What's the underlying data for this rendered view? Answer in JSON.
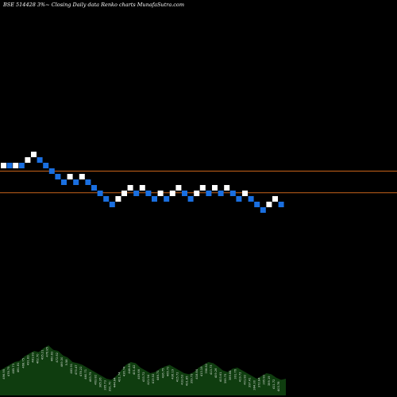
{
  "chart_data": {
    "type": "renko",
    "title": "BSE 514428  3%~  Closing Daily data  Renko  charts MunafaSutra.com",
    "colors": {
      "background": "#000000",
      "up_brick": "#ffffff",
      "down_brick": "#1a6fe0",
      "reference_line": "#c8641a",
      "volume_area": "#0f3d0f",
      "volume_label": "#cfd8cf"
    },
    "reference_lines": [
      {
        "name": "upper-level",
        "level": 0.0
      },
      {
        "name": "lower-level",
        "level": 3.9
      }
    ],
    "bricks": [
      {
        "d": "up",
        "lvl": 0
      },
      {
        "d": "down",
        "lvl": 0
      },
      {
        "d": "up",
        "lvl": 0
      },
      {
        "d": "down",
        "lvl": 0
      },
      {
        "d": "up",
        "lvl": -1
      },
      {
        "d": "up",
        "lvl": -2
      },
      {
        "d": "down",
        "lvl": -1
      },
      {
        "d": "down",
        "lvl": 0
      },
      {
        "d": "down",
        "lvl": 1
      },
      {
        "d": "down",
        "lvl": 2
      },
      {
        "d": "down",
        "lvl": 3
      },
      {
        "d": "up",
        "lvl": 2
      },
      {
        "d": "down",
        "lvl": 3
      },
      {
        "d": "up",
        "lvl": 2
      },
      {
        "d": "down",
        "lvl": 3
      },
      {
        "d": "down",
        "lvl": 4
      },
      {
        "d": "down",
        "lvl": 5
      },
      {
        "d": "down",
        "lvl": 6
      },
      {
        "d": "down",
        "lvl": 7
      },
      {
        "d": "up",
        "lvl": 6
      },
      {
        "d": "up",
        "lvl": 5
      },
      {
        "d": "up",
        "lvl": 4
      },
      {
        "d": "down",
        "lvl": 5
      },
      {
        "d": "up",
        "lvl": 4
      },
      {
        "d": "down",
        "lvl": 5
      },
      {
        "d": "down",
        "lvl": 6
      },
      {
        "d": "up",
        "lvl": 5
      },
      {
        "d": "down",
        "lvl": 6
      },
      {
        "d": "up",
        "lvl": 5
      },
      {
        "d": "up",
        "lvl": 4
      },
      {
        "d": "down",
        "lvl": 5
      },
      {
        "d": "down",
        "lvl": 6
      },
      {
        "d": "up",
        "lvl": 5
      },
      {
        "d": "up",
        "lvl": 4
      },
      {
        "d": "down",
        "lvl": 5
      },
      {
        "d": "up",
        "lvl": 4
      },
      {
        "d": "down",
        "lvl": 5
      },
      {
        "d": "up",
        "lvl": 4
      },
      {
        "d": "down",
        "lvl": 5
      },
      {
        "d": "down",
        "lvl": 6
      },
      {
        "d": "up",
        "lvl": 5
      },
      {
        "d": "down",
        "lvl": 6
      },
      {
        "d": "down",
        "lvl": 7
      },
      {
        "d": "down",
        "lvl": 8
      },
      {
        "d": "up",
        "lvl": 7
      },
      {
        "d": "up",
        "lvl": 6
      },
      {
        "d": "down",
        "lvl": 7
      }
    ],
    "volume_profile": [
      0.45,
      0.5,
      0.55,
      0.6,
      0.62,
      0.7,
      0.75,
      0.8,
      0.78,
      0.85,
      0.9,
      0.82,
      0.8,
      0.72,
      0.68,
      0.6,
      0.58,
      0.55,
      0.5,
      0.45,
      0.4,
      0.35,
      0.3,
      0.28,
      0.35,
      0.45,
      0.55,
      0.6,
      0.58,
      0.5,
      0.45,
      0.4,
      0.42,
      0.48,
      0.52,
      0.55,
      0.5,
      0.45,
      0.4,
      0.38,
      0.42,
      0.5,
      0.55,
      0.6,
      0.58,
      0.52,
      0.45,
      0.42,
      0.48,
      0.5,
      0.45,
      0.4,
      0.35,
      0.3,
      0.35,
      0.4,
      0.38,
      0.32,
      0.28,
      0.3
    ],
    "volume_labels": [
      "496.95",
      "478.75",
      "485.73",
      "461.81",
      "468.75",
      "491.83",
      "481.83",
      "462.70",
      "495.21",
      "476.85",
      "460.83",
      "472.82",
      "469.30",
      "5.58",
      "483.91",
      "470.47",
      "478.22",
      "460.71",
      "463.75",
      "463.82",
      "385.26",
      "395.73",
      "391.70",
      "444.84",
      "421.74",
      "436.74",
      "446.83",
      "401.42",
      "409.66",
      "433.72",
      "421.94",
      "419.52",
      "446.71",
      "436.75",
      "465.72",
      "436.19",
      "415.72",
      "433.63",
      "431.85",
      "399.73",
      "418.84",
      "413.19",
      "398.82",
      "413.73",
      "409.26",
      "403.61",
      "399.73",
      "389.84",
      "391.76",
      "419.72",
      "401.82",
      "397.41",
      "384.30",
      "372.84",
      "395.82",
      "389.19",
      "411.72",
      "403.78"
    ]
  }
}
